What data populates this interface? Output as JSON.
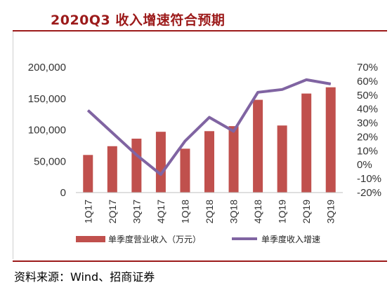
{
  "title": "2020Q3 收入增速符合预期",
  "source": "资料来源：Wind、招商证券",
  "colors": {
    "bar": "#c0504d",
    "line": "#8064a2",
    "accent": "#9c1a1a"
  },
  "chart_data": {
    "type": "bar+line",
    "categories": [
      "1Q17",
      "2Q17",
      "3Q17",
      "4Q17",
      "1Q18",
      "2Q18",
      "3Q18",
      "4Q18",
      "1Q19",
      "2Q19",
      "3Q19"
    ],
    "series": [
      {
        "name": "单季度营业收入（万元）",
        "type": "bar",
        "axis": "left",
        "values": [
          60000,
          74000,
          86000,
          97000,
          70000,
          98000,
          106000,
          148000,
          107000,
          158000,
          168000
        ]
      },
      {
        "name": "单季度收入增速",
        "type": "line",
        "axis": "right",
        "values": [
          0.39,
          0.23,
          0.07,
          -0.07,
          0.17,
          0.34,
          0.24,
          0.52,
          0.54,
          0.61,
          0.58
        ]
      }
    ],
    "y_left": {
      "range": [
        0,
        200000
      ],
      "ticks": [
        "0",
        "50,000",
        "100,000",
        "150,000",
        "200,000"
      ]
    },
    "y_right": {
      "range": [
        -0.2,
        0.7
      ],
      "ticks": [
        "-20%",
        "-10%",
        "0%",
        "10%",
        "20%",
        "30%",
        "40%",
        "50%",
        "60%",
        "70%"
      ]
    },
    "legend_position": "bottom"
  }
}
